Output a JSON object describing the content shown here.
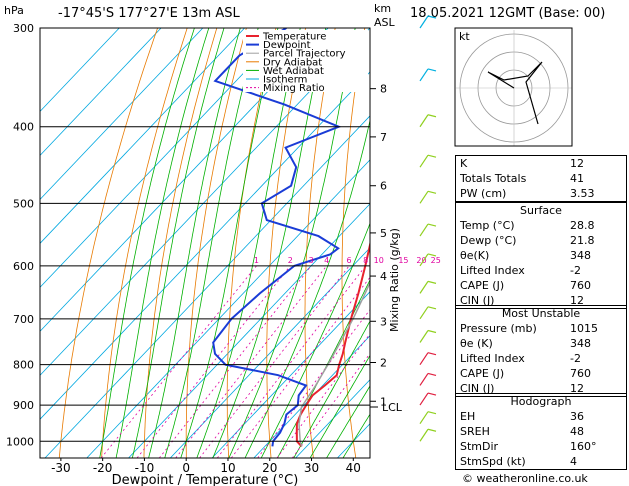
{
  "header": {
    "hpa_label": "hPa",
    "location": "-17°45'S 177°27'E 13m ASL",
    "km_label": "km",
    "asl_label": "ASL",
    "datetime": "18.05.2021 12GMT (Base: 00)"
  },
  "chart_data": {
    "type": "line",
    "subtype": "skew-T log-p diagram",
    "xlabel": "Dewpoint / Temperature (°C)",
    "ylabel_right": "Mixing Ratio (g/kg)",
    "x_ticks": [
      -30,
      -20,
      -10,
      0,
      10,
      20,
      30,
      40
    ],
    "pressure_ticks": [
      300,
      400,
      500,
      600,
      700,
      800,
      900,
      1000
    ],
    "km_ticks": [
      {
        "km": "8",
        "p": 358
      },
      {
        "km": "7",
        "p": 412
      },
      {
        "km": "6",
        "p": 475
      },
      {
        "km": "5",
        "p": 545
      },
      {
        "km": "4",
        "p": 618
      },
      {
        "km": "3",
        "p": 705
      },
      {
        "km": "2",
        "p": 795
      },
      {
        "km": "1",
        "p": 890
      }
    ],
    "lcl_label": "LCL",
    "lcl_pressure": 905,
    "mixing_ratio_labels": [
      "1",
      "2",
      "3",
      "4",
      "6",
      "8",
      "10",
      "15",
      "20",
      "25"
    ],
    "legend": [
      "Temperature",
      "Dewpoint",
      "Parcel Trajectory",
      "Dry Adiabat",
      "Wet Adiabat",
      "Isotherm",
      "Mixing Ratio"
    ],
    "colors": {
      "temperature": "#e8222e",
      "dewpoint": "#1a3cd6",
      "parcel": "#a0a0a0",
      "dry_adiabat": "#e87a00",
      "wet_adiabat": "#00b000",
      "isotherm": "#00a8e0",
      "mixing_ratio": "#e000a0"
    },
    "series": [
      {
        "name": "Temperature",
        "p": [
          1015,
          1000,
          975,
          950,
          925,
          900,
          875,
          850,
          825,
          800,
          775,
          750,
          700,
          650,
          600,
          550,
          500,
          450,
          400,
          350,
          300
        ],
        "t": [
          28.8,
          26.5,
          24.5,
          22.5,
          21.3,
          20.5,
          19.8,
          20.5,
          21.0,
          19.2,
          17.6,
          15.6,
          11.6,
          7.6,
          3.0,
          -2.2,
          -6.4,
          -12.0,
          -19.2,
          -28.0,
          -37.5
        ]
      },
      {
        "name": "Dewpoint",
        "p": [
          1015,
          1000,
          975,
          950,
          925,
          900,
          875,
          850,
          825,
          800,
          775,
          750,
          700,
          650,
          600,
          580,
          570,
          550,
          525,
          500,
          475,
          450,
          425,
          400,
          375,
          350,
          325,
          300
        ],
        "t": [
          21.8,
          20.8,
          20.5,
          19.5,
          17.9,
          18.5,
          16.5,
          16.0,
          7.0,
          -8.0,
          -13.0,
          -16.0,
          -17.0,
          -16.0,
          -14.0,
          -8.0,
          -7.5,
          -15.0,
          -31.0,
          -36.0,
          -33.0,
          -36.0,
          -43.0,
          -35.0,
          -53.0,
          -75.0,
          -75.0,
          -70.0
        ]
      },
      {
        "name": "Parcel Trajectory",
        "p": [
          1015,
          1000,
          950,
          905,
          850,
          800,
          750,
          700,
          650,
          600,
          550,
          500,
          450,
          400,
          350
        ],
        "t": [
          28.8,
          27.3,
          23.0,
          19.8,
          18.3,
          16.5,
          14.4,
          12.1,
          9.2,
          6.0,
          2.2,
          -2.5,
          -8.0,
          -15.0,
          -23.5
        ]
      }
    ],
    "hodograph_label": "kt",
    "hodograph_rings": [
      "20",
      "40",
      "60",
      "80",
      "120"
    ]
  },
  "indices": [
    {
      "label": "K",
      "value": "12"
    },
    {
      "label": "Totals Totals",
      "value": "41"
    },
    {
      "label": "PW (cm)",
      "value": "3.53"
    }
  ],
  "surface": {
    "title": "Surface",
    "rows": [
      {
        "label": "Temp (°C)",
        "value": "28.8"
      },
      {
        "label": "Dewp (°C)",
        "value": "21.8"
      },
      {
        "label": "θe(K)",
        "value": "348"
      },
      {
        "label": "Lifted Index",
        "value": "-2"
      },
      {
        "label": "CAPE (J)",
        "value": "760"
      },
      {
        "label": "CIN (J)",
        "value": "12"
      }
    ]
  },
  "most_unstable": {
    "title": "Most Unstable",
    "rows": [
      {
        "label": "Pressure (mb)",
        "value": "1015"
      },
      {
        "label": "θe (K)",
        "value": "348"
      },
      {
        "label": "Lifted Index",
        "value": "-2"
      },
      {
        "label": "CAPE (J)",
        "value": "760"
      },
      {
        "label": "CIN (J)",
        "value": "12"
      }
    ]
  },
  "hodograph_table": {
    "title": "Hodograph",
    "rows": [
      {
        "label": "EH",
        "value": "36"
      },
      {
        "label": "SREH",
        "value": "48"
      },
      {
        "label": "StmDir",
        "value": "160°"
      },
      {
        "label": "StmSpd (kt)",
        "value": "4"
      }
    ]
  },
  "footer": {
    "copyright": "© weatheronline.co.uk"
  }
}
